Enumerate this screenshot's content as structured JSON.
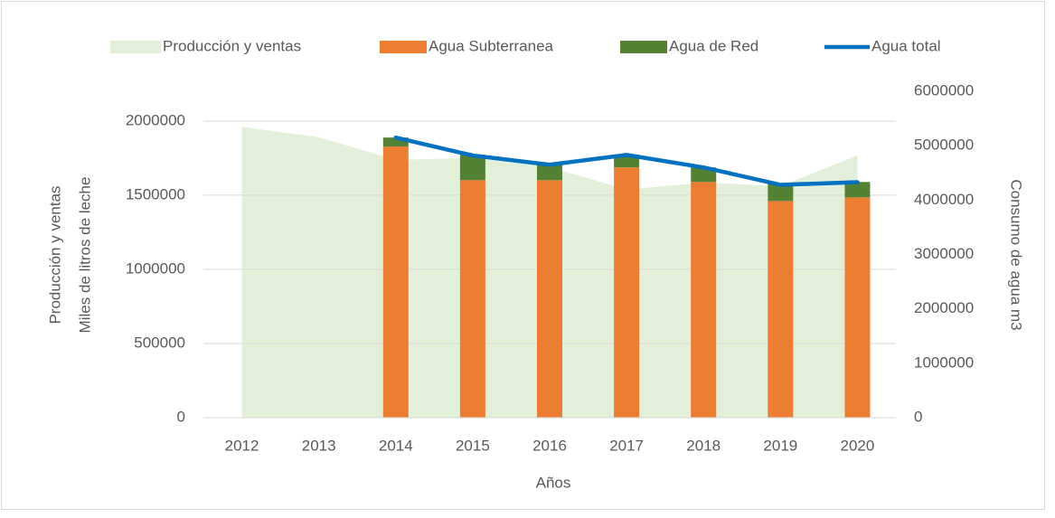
{
  "chart_data": {
    "type": "combo",
    "categories": [
      "2012",
      "2013",
      "2014",
      "2015",
      "2016",
      "2017",
      "2018",
      "2019",
      "2020"
    ],
    "xlabel": "Años",
    "ylabel": [
      "Producción y ventas",
      "Miles de litros de leche"
    ],
    "y2label": "Consumo de agua m3",
    "ylim": [
      0,
      2200000
    ],
    "yticks": [
      0,
      500000,
      1000000,
      1500000,
      2000000
    ],
    "y2lim": [
      0,
      6000000
    ],
    "y2ticks": [
      0,
      1000000,
      2000000,
      3000000,
      4000000,
      5000000,
      6000000
    ],
    "grid": true,
    "legend": "top",
    "series": [
      {
        "name": "Producción y ventas",
        "type": "area",
        "color": "#e2f0d9",
        "values": [
          1960000,
          1890000,
          1738000,
          1750000,
          1690000,
          1537000,
          1585000,
          1560000,
          1768000
        ]
      },
      {
        "name": "Agua Subterranea",
        "type": "bar",
        "axis": "y2",
        "color": "#ed7d31",
        "values": [
          null,
          null,
          4983000,
          4367000,
          4367000,
          4600000,
          4333000,
          3983000,
          4050000
        ]
      },
      {
        "name": "Agua de Red",
        "type": "bar",
        "axis": "y2",
        "color": "#548235",
        "values": [
          null,
          null,
          167000,
          467000,
          300000,
          233000,
          267000,
          333000,
          283000
        ]
      },
      {
        "name": "Agua total",
        "type": "line",
        "axis": "y2",
        "color": "#0070c0",
        "values": [
          null,
          null,
          5150000,
          4820000,
          4650000,
          4830000,
          4600000,
          4280000,
          4330000
        ]
      }
    ]
  }
}
